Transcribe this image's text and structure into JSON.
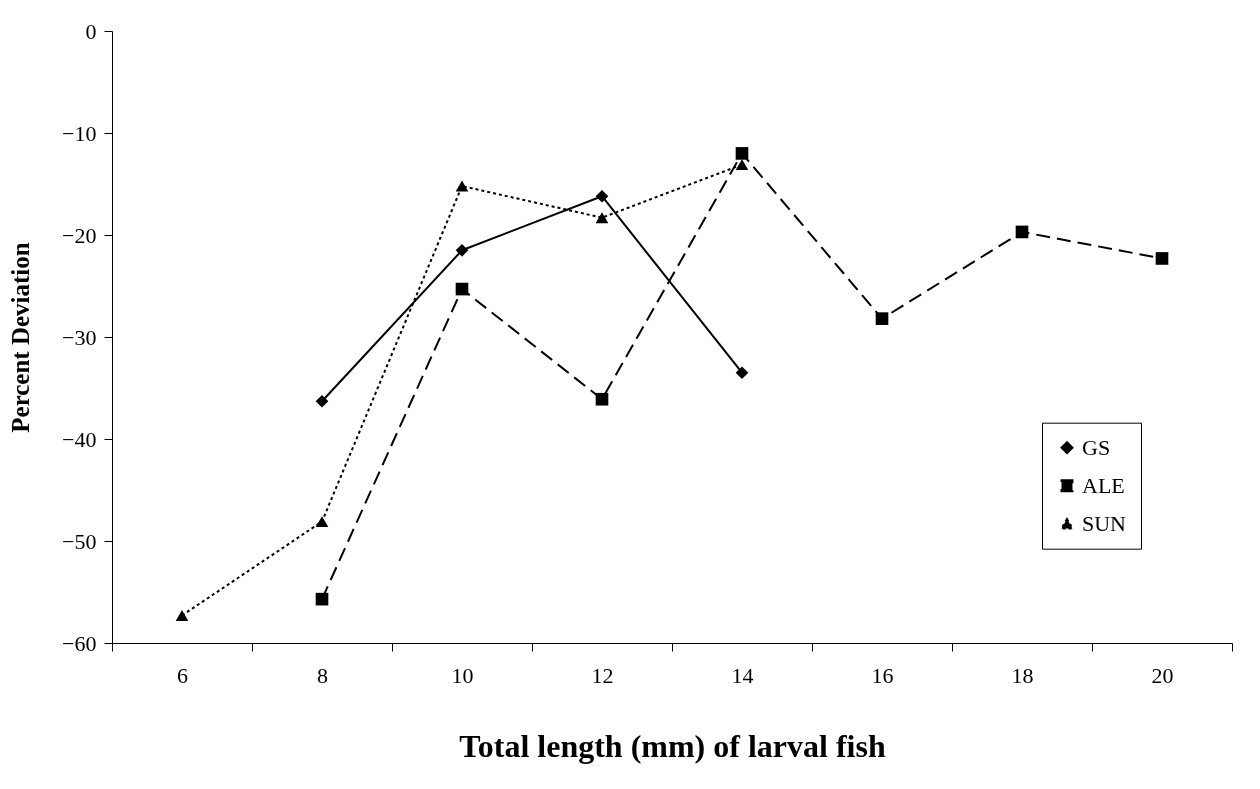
{
  "chart_data": {
    "type": "line",
    "xlabel": "Total length (mm) of larval fish",
    "ylabel": "Percent Deviation",
    "categories": [
      "6",
      "8",
      "10",
      "12",
      "14",
      "16",
      "18",
      "20"
    ],
    "ylim": [
      -60,
      0
    ],
    "yticks": [
      -60,
      -50,
      -40,
      -30,
      -20,
      -10,
      0
    ],
    "legend": "right",
    "series": [
      {
        "name": "GS",
        "color": "#000000",
        "marker": "diamond",
        "line_style": "solid",
        "values": [
          null,
          -36.3,
          -21.5,
          -16.2,
          -33.5,
          null,
          null,
          null
        ]
      },
      {
        "name": "ALE",
        "color": "#000000",
        "marker": "square",
        "line_style": "dashed",
        "values": [
          null,
          -55.7,
          -25.3,
          -36.1,
          -12.0,
          -28.2,
          -19.7,
          -22.3
        ]
      },
      {
        "name": "SUN",
        "color": "#000000",
        "marker": "triangle",
        "line_style": "dotted",
        "values": [
          -57.3,
          -48.1,
          -15.2,
          -18.3,
          -13.1,
          null,
          null,
          null
        ]
      }
    ]
  }
}
